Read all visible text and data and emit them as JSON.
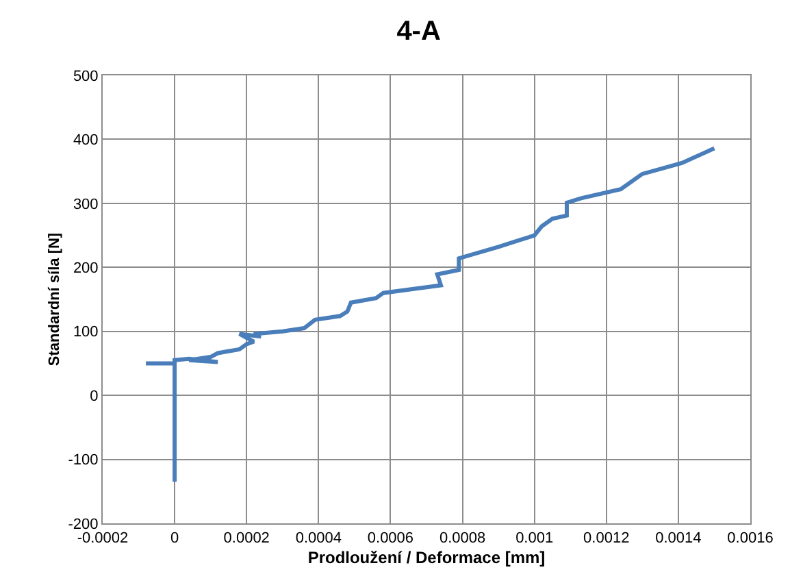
{
  "chart_data": {
    "type": "line",
    "title": "4-A",
    "xlabel": "Prodloužení / Deformace [mm]",
    "ylabel": "Standardní síla [N]",
    "xlim": [
      -0.0002,
      0.0016
    ],
    "xticks": [
      -0.0002,
      0,
      0.0002,
      0.0004,
      0.0006,
      0.0008,
      0.001,
      0.0012,
      0.0014,
      0.0016
    ],
    "ylim": [
      -200,
      500
    ],
    "yticks": [
      -200,
      -100,
      0,
      100,
      200,
      300,
      400,
      500
    ],
    "grid": true,
    "marker": "none",
    "line_style": "solid",
    "series": [
      {
        "color": "#4a7ebb",
        "x": [
          0,
          0,
          -8e-05,
          0,
          0,
          4e-05,
          0.00012,
          4e-05,
          0.0001,
          0.00012,
          0.00018,
          0.0002,
          0.00022,
          0.0002,
          0.00018,
          0.00024,
          0.00022,
          0.0003,
          0.00036,
          0.00039,
          0.00046,
          0.00048,
          0.00049,
          0.00056,
          0.00058,
          0.00074,
          0.00073,
          0.00079,
          0.00079,
          0.0009,
          0.001,
          0.00102,
          0.00105,
          0.00109,
          0.00109,
          0.00113,
          0.00124,
          0.0013,
          0.00141,
          0.0015
        ],
        "values": [
          -135,
          50,
          50,
          50,
          55,
          57,
          52,
          55,
          60,
          66,
          72,
          80,
          84,
          90,
          96,
          92,
          96,
          100,
          105,
          118,
          124,
          131,
          145,
          152,
          160,
          172,
          189,
          196,
          214,
          232,
          250,
          264,
          276,
          281,
          301,
          308,
          322,
          346,
          363,
          386
        ]
      }
    ]
  }
}
